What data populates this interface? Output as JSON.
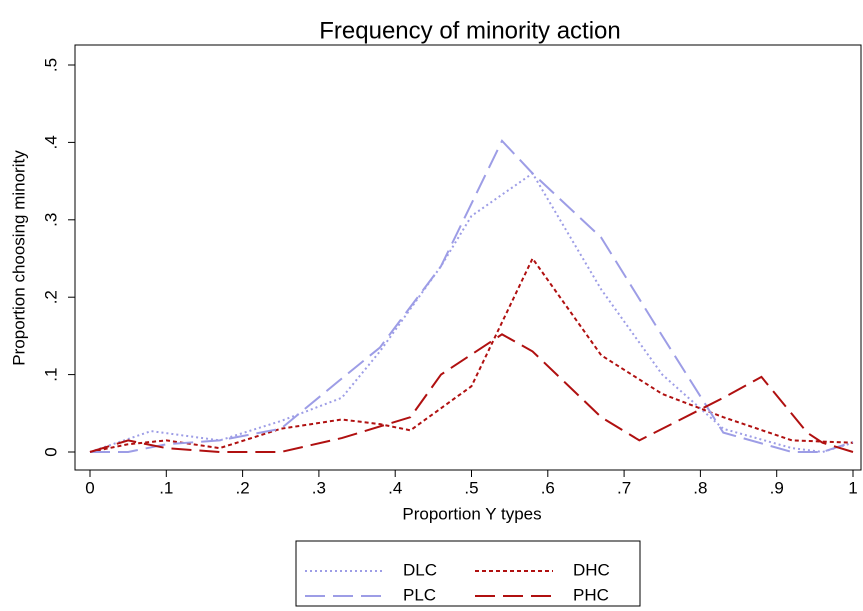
{
  "chart_data": {
    "type": "line",
    "title": "Frequency of minority action",
    "xlabel": "Proportion Y types",
    "ylabel": "Proportion choosing minority",
    "xlim": [
      0,
      1
    ],
    "ylim": [
      0,
      0.5
    ],
    "xticks": [
      0,
      {
        "value": 0.1,
        "label": ".1"
      },
      {
        "value": 0.2,
        "label": ".2"
      },
      {
        "value": 0.3,
        "label": ".3"
      },
      {
        "value": 0.4,
        "label": ".4"
      },
      {
        "value": 0.5,
        "label": ".5"
      },
      {
        "value": 0.6,
        "label": ".6"
      },
      {
        "value": 0.7,
        "label": ".7"
      },
      {
        "value": 0.8,
        "label": ".8"
      },
      {
        "value": 0.9,
        "label": ".9"
      },
      1
    ],
    "yticks": [
      0,
      {
        "value": 0.1,
        "label": ".1"
      },
      {
        "value": 0.2,
        "label": ".2"
      },
      {
        "value": 0.3,
        "label": ".3"
      },
      {
        "value": 0.4,
        "label": ".4"
      },
      {
        "value": 0.5,
        "label": ".5"
      }
    ],
    "series": [
      {
        "name": "DLC",
        "color": "#9d9de6",
        "dash": "dotted",
        "x": [
          0,
          0.08,
          0.17,
          0.25,
          0.33,
          0.38,
          0.46,
          0.5,
          0.58,
          0.67,
          0.75,
          0.83,
          0.92,
          0.96,
          1
        ],
        "values": [
          0,
          0.027,
          0.015,
          0.04,
          0.07,
          0.13,
          0.24,
          0.305,
          0.36,
          0.21,
          0.1,
          0.03,
          0.005,
          0,
          0.012
        ]
      },
      {
        "name": "DHC",
        "color": "#b01010",
        "dash": "short",
        "x": [
          0,
          0.05,
          0.1,
          0.17,
          0.25,
          0.33,
          0.38,
          0.42,
          0.5,
          0.58,
          0.67,
          0.75,
          0.83,
          0.92,
          1
        ],
        "values": [
          0,
          0.01,
          0.015,
          0.005,
          0.03,
          0.042,
          0.036,
          0.028,
          0.085,
          0.25,
          0.125,
          0.075,
          0.045,
          0.015,
          0.012
        ]
      },
      {
        "name": "PLC",
        "color": "#9d9de6",
        "dash": "long",
        "x": [
          0,
          0.05,
          0.1,
          0.17,
          0.25,
          0.33,
          0.38,
          0.46,
          0.54,
          0.58,
          0.67,
          0.75,
          0.83,
          0.92,
          0.96,
          1
        ],
        "values": [
          0,
          0,
          0.01,
          0.015,
          0.03,
          0.095,
          0.135,
          0.24,
          0.402,
          0.36,
          0.277,
          0.15,
          0.025,
          0,
          0,
          0.013
        ]
      },
      {
        "name": "PHC",
        "color": "#b01010",
        "dash": "long",
        "x": [
          0,
          0.05,
          0.1,
          0.17,
          0.25,
          0.33,
          0.42,
          0.46,
          0.54,
          0.58,
          0.67,
          0.72,
          0.83,
          0.88,
          0.94,
          0.96,
          1
        ],
        "values": [
          0,
          0.015,
          0.005,
          0,
          0,
          0.018,
          0.045,
          0.1,
          0.152,
          0.13,
          0.045,
          0.015,
          0.07,
          0.097,
          0.025,
          0.012,
          0
        ]
      }
    ]
  }
}
